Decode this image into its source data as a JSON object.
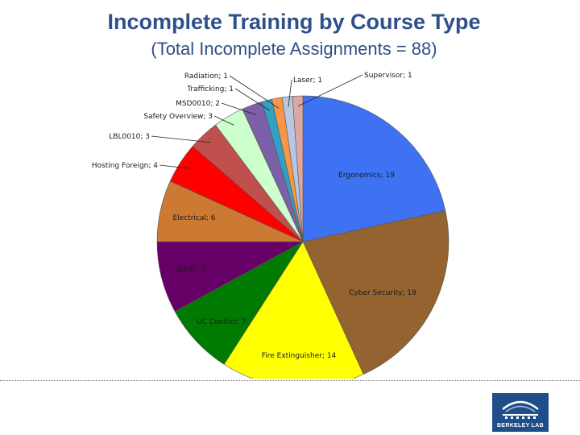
{
  "title": "Incomplete Training by Course Type",
  "subtitle": "(Total Incomplete Assignments = 88)",
  "logo": {
    "text": "BERKELEY LAB",
    "icon": "berkeley-lab-logo-icon"
  },
  "chart_data": {
    "type": "pie",
    "title": "Incomplete Training by Course Type",
    "subtitle": "(Total Incomplete Assignments = 88)",
    "legend": "none",
    "slices": [
      {
        "label": "Ergonomics; 19",
        "name": "Ergonomics",
        "value": 19,
        "color": "#3e72f2"
      },
      {
        "label": "Cyber Security; 19",
        "name": "Cyber Security",
        "value": 19,
        "color": "#946330"
      },
      {
        "label": "Fire Extinguisher; 14",
        "name": "Fire Extinguisher",
        "value": 14,
        "color": "#ffff00"
      },
      {
        "label": "UC Conflict; 7",
        "name": "UC Conflict",
        "value": 7,
        "color": "#007a00"
      },
      {
        "label": "GERT; 7",
        "name": "GERT",
        "value": 7,
        "color": "#660066"
      },
      {
        "label": "Electrical; 6",
        "name": "Electrical",
        "value": 6,
        "color": "#cc7a33"
      },
      {
        "label": "Hosting Foreign; 4",
        "name": "Hosting Foreign",
        "value": 4,
        "color": "#ff0000"
      },
      {
        "label": "LBL0010; 3",
        "name": "LBL0010",
        "value": 3,
        "color": "#c0504d"
      },
      {
        "label": "Safety Overview; 3",
        "name": "Safety Overview",
        "value": 3,
        "color": "#ccffcc"
      },
      {
        "label": "MSD0010; 2",
        "name": "MSD0010",
        "value": 2,
        "color": "#7b5fa8"
      },
      {
        "label": "Trafficking; 1",
        "name": "Trafficking",
        "value": 1,
        "color": "#31a0c2"
      },
      {
        "label": "Radiation; 1",
        "name": "Radiation",
        "value": 1,
        "color": "#f79646"
      },
      {
        "label": "Laser; 1",
        "name": "Laser",
        "value": 1,
        "color": "#b9c6e2"
      },
      {
        "label": "Supervisor; 1",
        "name": "Supervisor",
        "value": 1,
        "color": "#dba8a3"
      }
    ]
  }
}
